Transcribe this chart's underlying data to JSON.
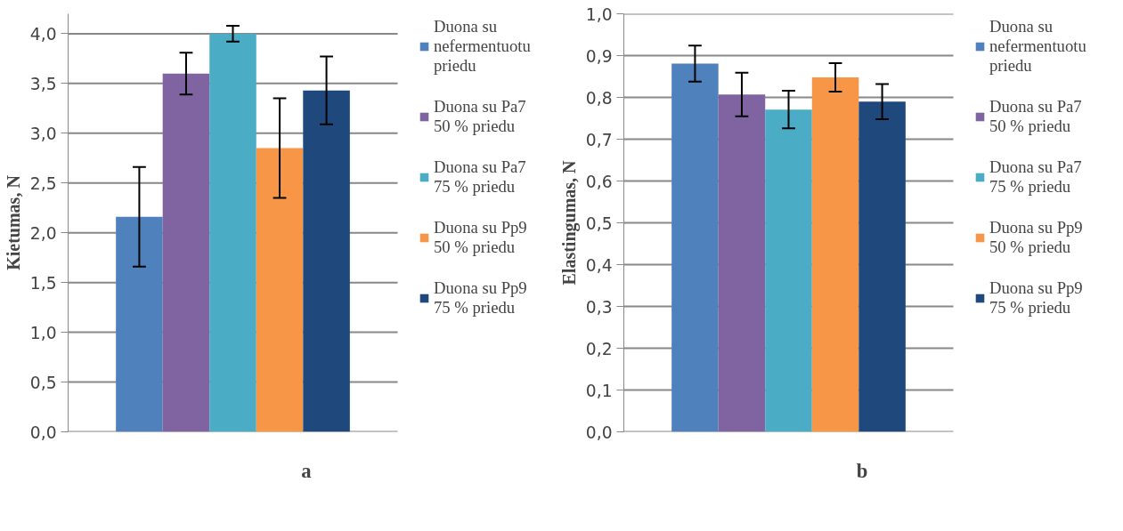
{
  "chart_data": [
    {
      "type": "bar",
      "xlabel": "a",
      "ylabel": "Kietumas, N",
      "categories": [
        null
      ],
      "ylim": [
        0,
        4.2
      ],
      "yticks": [
        {
          "value": 0,
          "label": "0,0"
        },
        {
          "value": 0.5,
          "label": "0,5"
        },
        {
          "value": 1,
          "label": "1,0"
        },
        {
          "value": 1.5,
          "label": "1,5"
        },
        {
          "value": 2,
          "label": "2,0"
        },
        {
          "value": 2.5,
          "label": "2,5"
        },
        {
          "value": 3,
          "label": "3,0"
        },
        {
          "value": 3.5,
          "label": "3,5"
        },
        {
          "value": 4,
          "label": "4,0"
        }
      ],
      "grid": "y",
      "legend": "right",
      "tick_labels": "y",
      "series": [
        {
          "name": "Duona su nefermentuotu priedu",
          "color": "#4f81bd",
          "values": [
            2.16
          ],
          "errors": [
            0.5
          ]
        },
        {
          "name": "Duona su Pa7 50 % priedu",
          "color": "#8064a2",
          "values": [
            3.6
          ],
          "errors": [
            0.21
          ]
        },
        {
          "name": "Duona su Pa7 75 % priedu",
          "color": "#4bacc6",
          "values": [
            4.0
          ],
          "errors": [
            0.08
          ]
        },
        {
          "name": "Duona su Pp9 50 % priedu",
          "color": "#f79646",
          "values": [
            2.85
          ],
          "errors": [
            0.5
          ]
        },
        {
          "name": "Duona su Pp9 75 % priedu",
          "color": "#1f497d",
          "values": [
            3.43
          ],
          "errors": [
            0.34
          ]
        }
      ]
    },
    {
      "type": "bar",
      "xlabel": "b",
      "ylabel": "Elastingumas, N",
      "categories": [
        null
      ],
      "ylim": [
        0,
        1.0
      ],
      "yticks": [
        {
          "value": 0,
          "label": "0,0"
        },
        {
          "value": 0.1,
          "label": "0,1"
        },
        {
          "value": 0.2,
          "label": "0,2"
        },
        {
          "value": 0.3,
          "label": "0,3"
        },
        {
          "value": 0.4,
          "label": "0,4"
        },
        {
          "value": 0.5,
          "label": "0,5"
        },
        {
          "value": 0.6,
          "label": "0,6"
        },
        {
          "value": 0.7,
          "label": "0,7"
        },
        {
          "value": 0.8,
          "label": "0,8"
        },
        {
          "value": 0.9,
          "label": "0,9"
        },
        {
          "value": 1.0,
          "label": "1,0"
        }
      ],
      "grid": "y",
      "legend": "right",
      "tick_labels": "y",
      "series": [
        {
          "name": "Duona su nefermentuotu priedu",
          "color": "#4f81bd",
          "values": [
            0.881
          ],
          "errors": [
            0.043
          ]
        },
        {
          "name": "Duona su Pa7 50 % priedu",
          "color": "#8064a2",
          "values": [
            0.807
          ],
          "errors": [
            0.052
          ]
        },
        {
          "name": "Duona su Pa7 75 % priedu",
          "color": "#4bacc6",
          "values": [
            0.771
          ],
          "errors": [
            0.045
          ]
        },
        {
          "name": "Duona su Pp9 50 % priedu",
          "color": "#f79646",
          "values": [
            0.848
          ],
          "errors": [
            0.034
          ]
        },
        {
          "name": "Duona su Pp9 75 % priedu",
          "color": "#1f497d",
          "values": [
            0.79
          ],
          "errors": [
            0.042
          ]
        }
      ]
    }
  ]
}
